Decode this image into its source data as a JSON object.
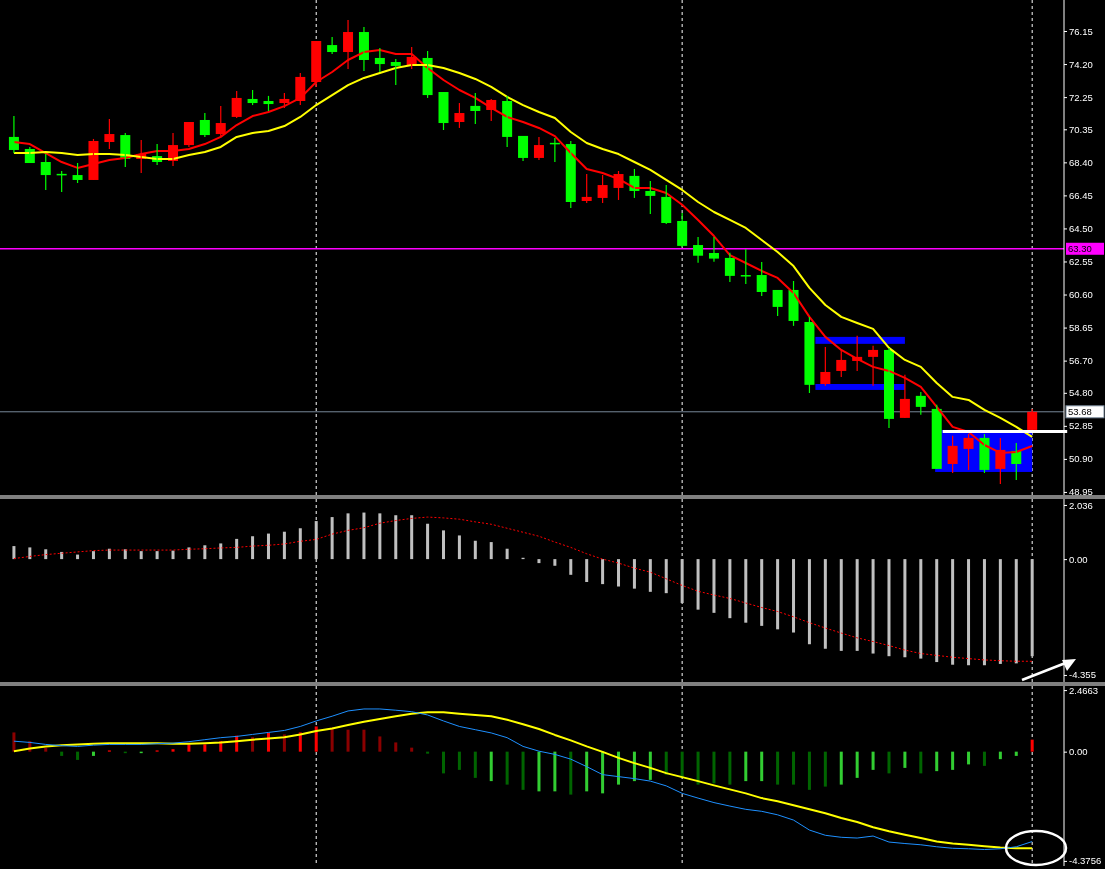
{
  "chart_data": [
    {
      "type": "candlestick",
      "categories": [
        null,
        null,
        null,
        null,
        null,
        null,
        null,
        null,
        null,
        null,
        null,
        null,
        null,
        null,
        null,
        null,
        null,
        null,
        null,
        null,
        null,
        null,
        null,
        null,
        null,
        null,
        null,
        null,
        null,
        null,
        null,
        null,
        null,
        null,
        null,
        null,
        null,
        null,
        null,
        null,
        null,
        null,
        null,
        null,
        null,
        null,
        null,
        null,
        null,
        null,
        null,
        null,
        null,
        null,
        null,
        null,
        null,
        null,
        null,
        null,
        null,
        null,
        null,
        null,
        null
      ],
      "ohlc": [
        [
          69.9,
          71.14,
          68.95,
          69.13
        ],
        [
          69.19,
          69.31,
          68.36,
          68.36
        ],
        [
          68.42,
          68.89,
          66.77,
          67.65
        ],
        [
          67.72,
          67.89,
          66.65,
          67.7
        ],
        [
          67.65,
          68.36,
          67.18,
          67.36
        ],
        [
          67.36,
          69.78,
          67.36,
          69.66
        ],
        [
          69.6,
          70.96,
          69.19,
          70.07
        ],
        [
          70.01,
          70.13,
          68.13,
          68.6
        ],
        [
          68.6,
          69.72,
          67.77,
          68.89
        ],
        [
          68.77,
          69.48,
          68.24,
          68.42
        ],
        [
          68.48,
          70.13,
          68.19,
          69.42
        ],
        [
          69.42,
          70.78,
          69.3,
          70.78
        ],
        [
          70.9,
          71.31,
          69.9,
          70.01
        ],
        [
          70.07,
          71.73,
          69.9,
          70.72
        ],
        [
          71.08,
          72.61,
          71.02,
          72.2
        ],
        [
          72.14,
          72.67,
          71.78,
          71.9
        ],
        [
          72.02,
          72.32,
          71.43,
          71.84
        ],
        [
          71.9,
          72.49,
          71.61,
          72.14
        ],
        [
          72.02,
          73.67,
          71.78,
          73.44
        ],
        [
          73.14,
          75.56,
          72.85,
          75.56
        ],
        [
          75.32,
          75.8,
          74.79,
          74.91
        ],
        [
          74.91,
          76.8,
          73.91,
          76.09
        ],
        [
          76.09,
          76.39,
          73.79,
          74.44
        ],
        [
          74.56,
          75.15,
          73.73,
          74.2
        ],
        [
          74.32,
          74.5,
          72.96,
          74.09
        ],
        [
          74.14,
          75.21,
          73.91,
          74.62
        ],
        [
          74.56,
          74.97,
          72.2,
          72.37
        ],
        [
          72.55,
          72.55,
          70.31,
          70.72
        ],
        [
          70.78,
          71.9,
          70.43,
          71.31
        ],
        [
          71.73,
          72.49,
          70.66,
          71.43
        ],
        [
          71.49,
          72.14,
          70.84,
          72.08
        ],
        [
          72.02,
          72.32,
          69.31,
          69.9
        ],
        [
          69.96,
          69.96,
          68.48,
          68.66
        ],
        [
          68.66,
          69.9,
          68.54,
          69.42
        ],
        [
          69.55,
          69.84,
          68.42,
          69.54
        ],
        [
          69.48,
          69.66,
          65.71,
          66.06
        ],
        [
          66.12,
          67.71,
          66.0,
          66.36
        ],
        [
          66.3,
          67.65,
          66.0,
          67.06
        ],
        [
          66.89,
          67.89,
          66.18,
          67.71
        ],
        [
          67.6,
          68.01,
          66.3,
          66.71
        ],
        [
          66.71,
          67.3,
          65.35,
          66.42
        ],
        [
          66.36,
          67.06,
          64.76,
          64.82
        ],
        [
          64.94,
          65.41,
          63.41,
          63.47
        ],
        [
          63.52,
          64.0,
          62.48,
          62.89
        ],
        [
          63.05,
          64.0,
          62.54,
          62.72
        ],
        [
          62.76,
          63.07,
          61.34,
          61.7
        ],
        [
          61.75,
          63.29,
          61.22,
          61.73
        ],
        [
          61.75,
          62.52,
          60.52,
          60.75
        ],
        [
          60.87,
          60.87,
          59.34,
          59.87
        ],
        [
          60.87,
          61.4,
          58.75,
          59.04
        ],
        [
          58.98,
          59.28,
          54.79,
          55.27
        ],
        [
          55.32,
          57.51,
          55.21,
          56.03
        ],
        [
          56.09,
          57.39,
          55.74,
          56.74
        ],
        [
          56.68,
          58.16,
          56.09,
          56.92
        ],
        [
          56.92,
          57.57,
          55.21,
          57.33
        ],
        [
          57.33,
          57.45,
          52.73,
          53.26
        ],
        [
          53.32,
          55.86,
          53.32,
          54.44
        ],
        [
          54.62,
          54.85,
          53.5,
          53.97
        ],
        [
          53.85,
          54.09,
          50.31,
          50.31
        ],
        [
          50.6,
          52.26,
          50.07,
          51.67
        ],
        [
          51.49,
          52.37,
          50.25,
          52.14
        ],
        [
          52.14,
          52.37,
          50.07,
          50.25
        ],
        [
          50.31,
          52.14,
          49.42,
          51.43
        ],
        [
          51.37,
          51.84,
          49.66,
          50.6
        ],
        [
          52.61,
          53.85,
          52.61,
          53.68
        ]
      ],
      "colors": [
        "#00ff00",
        "#00ff00",
        "#00ff00",
        "#00ff00",
        "#00ff00",
        "#ff0000",
        "#ff0000",
        "#00ff00",
        "#ff0000",
        "#00ff00",
        "#ff0000",
        "#ff0000",
        "#00ff00",
        "#ff0000",
        "#ff0000",
        "#00ff00",
        "#00ff00",
        "#ff0000",
        "#ff0000",
        "#ff0000",
        "#00ff00",
        "#ff0000",
        "#00ff00",
        "#00ff00",
        "#00ff00",
        "#ff0000",
        "#00ff00",
        "#00ff00",
        "#ff0000",
        "#00ff00",
        "#ff0000",
        "#00ff00",
        "#00ff00",
        "#ff0000",
        "#00ff00",
        "#00ff00",
        "#ff0000",
        "#ff0000",
        "#ff0000",
        "#00ff00",
        "#00ff00",
        "#00ff00",
        "#00ff00",
        "#00ff00",
        "#00ff00",
        "#00ff00",
        "#00ff00",
        "#00ff00",
        "#00ff00",
        "#00ff00",
        "#00ff00",
        "#ff0000",
        "#ff0000",
        "#ff0000",
        "#ff0000",
        "#00ff00",
        "#ff0000",
        "#00ff00",
        "#00ff00",
        "#ff0000",
        "#ff0000",
        "#00ff00",
        "#ff0000",
        "#00ff00",
        "#ff0000"
      ],
      "series": [
        {
          "type": "line",
          "color": "#ff0000",
          "values": [
            69.6,
            69.48,
            68.95,
            68.42,
            68.07,
            68.3,
            68.54,
            68.66,
            68.89,
            69.07,
            69.07,
            69.19,
            69.48,
            69.9,
            70.6,
            71.13,
            71.37,
            71.72,
            72.2,
            73.14,
            73.73,
            74.44,
            74.91,
            75.03,
            74.79,
            74.79,
            73.97,
            73.26,
            72.67,
            72.2,
            71.61,
            71.08,
            70.78,
            70.43,
            69.95,
            68.95,
            68.01,
            67.77,
            67.42,
            66.89,
            66.89,
            66.59,
            65.9,
            65.0,
            64.05,
            62.93,
            62.46,
            61.99,
            61.58,
            60.69,
            59.28,
            58.1,
            57.33,
            56.8,
            56.33,
            56.09,
            55.68,
            55.15,
            53.97,
            52.79,
            52.49,
            51.72,
            51.25,
            51.31,
            51.66
          ]
        },
        {
          "type": "line",
          "color": "#ffff00",
          "values": [
            68.95,
            68.95,
            69.01,
            68.95,
            68.83,
            68.89,
            68.89,
            68.83,
            68.72,
            68.6,
            68.6,
            68.83,
            69.01,
            69.31,
            69.9,
            70.13,
            70.25,
            70.54,
            71.08,
            71.78,
            72.37,
            72.96,
            73.38,
            73.67,
            73.97,
            74.14,
            74.14,
            73.97,
            73.67,
            73.32,
            72.85,
            72.26,
            71.78,
            71.37,
            71.02,
            70.19,
            69.54,
            69.19,
            68.89,
            68.42,
            67.95,
            67.36,
            66.77,
            66.06,
            65.47,
            65.0,
            64.53,
            63.82,
            63.11,
            62.28,
            60.99,
            59.98,
            59.28,
            58.92,
            58.57,
            57.45,
            56.74,
            56.33,
            55.38,
            54.56,
            54.38,
            53.79,
            53.32,
            52.79,
            52.2
          ]
        }
      ],
      "ylim": [
        48.77,
        77.98
      ],
      "yticks": [
        {
          "value": 48.95,
          "label": "48.95"
        },
        {
          "value": 50.9,
          "label": "50.90"
        },
        {
          "value": 52.85,
          "label": "52.85"
        },
        {
          "value": 54.8,
          "label": "54.80"
        },
        {
          "value": 56.7,
          "label": "56.70"
        },
        {
          "value": 58.65,
          "label": "58.65"
        },
        {
          "value": 60.6,
          "label": "60.60"
        },
        {
          "value": 62.55,
          "label": "62.55"
        },
        {
          "value": 64.5,
          "label": "64.50"
        },
        {
          "value": 66.45,
          "label": "66.45"
        },
        {
          "value": 68.4,
          "label": "68.40"
        },
        {
          "value": 70.35,
          "label": "70.35"
        },
        {
          "value": 72.25,
          "label": "72.25"
        },
        {
          "value": 74.2,
          "label": "74.20"
        },
        {
          "value": 76.15,
          "label": "76.15"
        }
      ],
      "ref_lines": [
        {
          "axis": "y",
          "value": 63.3,
          "label": "63.30",
          "color": "#ff00ff"
        },
        {
          "axis": "y",
          "value": 53.68,
          "label": "53.68",
          "color": "#778899"
        }
      ],
      "grid": "x",
      "tick_labels": "y"
    },
    {
      "type": "bar",
      "categories": [
        null,
        null,
        null,
        null,
        null,
        null,
        null,
        null,
        null,
        null,
        null,
        null,
        null,
        null,
        null,
        null,
        null,
        null,
        null,
        null,
        null,
        null,
        null,
        null,
        null,
        null,
        null,
        null,
        null,
        null,
        null,
        null,
        null,
        null,
        null,
        null,
        null,
        null,
        null,
        null,
        null,
        null,
        null,
        null,
        null,
        null,
        null,
        null,
        null,
        null,
        null,
        null,
        null,
        null,
        null,
        null,
        null,
        null,
        null,
        null,
        null,
        null,
        null,
        null,
        null
      ],
      "series": [
        {
          "type": "bar",
          "color": "#c0c0c0",
          "values": [
            0.49,
            0.44,
            0.37,
            0.27,
            0.17,
            0.3,
            0.39,
            0.37,
            0.3,
            0.3,
            0.32,
            0.44,
            0.52,
            0.59,
            0.76,
            0.86,
            0.96,
            1.03,
            1.16,
            1.43,
            1.58,
            1.72,
            1.75,
            1.72,
            1.65,
            1.65,
            1.33,
            1.08,
            0.89,
            0.69,
            0.64,
            0.39,
            0.05,
            -0.15,
            -0.25,
            -0.59,
            -0.86,
            -0.94,
            -1.03,
            -1.11,
            -1.23,
            -1.28,
            -1.65,
            -1.9,
            -2.02,
            -2.22,
            -2.39,
            -2.51,
            -2.64,
            -2.76,
            -3.2,
            -3.37,
            -3.45,
            -3.45,
            -3.55,
            -3.65,
            -3.69,
            -3.74,
            -3.87,
            -3.97,
            -3.99,
            -3.99,
            -3.94,
            -3.92,
            -3.65
          ]
        },
        {
          "type": "line",
          "color": "#ff0000",
          "line_style": "dotted",
          "values": [
            0.02,
            0.1,
            0.17,
            0.22,
            0.27,
            0.32,
            0.34,
            0.34,
            0.34,
            0.34,
            0.34,
            0.37,
            0.39,
            0.42,
            0.44,
            0.49,
            0.52,
            0.57,
            0.67,
            0.74,
            0.94,
            1.08,
            1.18,
            1.35,
            1.45,
            1.53,
            1.58,
            1.55,
            1.5,
            1.4,
            1.31,
            1.16,
            1.01,
            0.86,
            0.64,
            0.44,
            0.2,
            0.0,
            -0.15,
            -0.34,
            -0.49,
            -0.74,
            -0.99,
            -1.21,
            -1.35,
            -1.48,
            -1.65,
            -1.82,
            -1.97,
            -2.17,
            -2.39,
            -2.59,
            -2.78,
            -2.96,
            -3.1,
            -3.25,
            -3.42,
            -3.55,
            -3.62,
            -3.69,
            -3.74,
            -3.79,
            -3.82,
            -3.84,
            -3.84
          ]
        }
      ],
      "ylim": [
        -4.62,
        2.26
      ],
      "yticks": [
        {
          "value": 2.036,
          "label": "2.036"
        },
        {
          "value": 0,
          "label": "0.00"
        },
        {
          "value": -4.355,
          "label": "-4.355"
        }
      ],
      "grid": "x",
      "tick_labels": "y"
    },
    {
      "type": "bar",
      "categories": [
        null,
        null,
        null,
        null,
        null,
        null,
        null,
        null,
        null,
        null,
        null,
        null,
        null,
        null,
        null,
        null,
        null,
        null,
        null,
        null,
        null,
        null,
        null,
        null,
        null,
        null,
        null,
        null,
        null,
        null,
        null,
        null,
        null,
        null,
        null,
        null,
        null,
        null,
        null,
        null,
        null,
        null,
        null,
        null,
        null,
        null,
        null,
        null,
        null,
        null,
        null,
        null,
        null,
        null,
        null,
        null,
        null,
        null,
        null,
        null,
        null,
        null,
        null,
        null,
        null
      ],
      "series": [
        {
          "type": "bar",
          "colors": [
            "#8b0000",
            "#8b0000",
            "#8b0000",
            "#006400",
            "#006400",
            "#32cd32",
            "#ff0000",
            "#006400",
            "#32cd32",
            "#ff0000",
            "#ff0000",
            "#ff0000",
            "#ff0000",
            "#ff0000",
            "#ff0000",
            "#8b0000",
            "#ff0000",
            "#8b0000",
            "#ff0000",
            "#ff0000",
            "#8b0000",
            "#8b0000",
            "#8b0000",
            "#8b0000",
            "#8b0000",
            "#8b0000",
            "#006400",
            "#006400",
            "#006400",
            "#006400",
            "#32cd32",
            "#006400",
            "#006400",
            "#32cd32",
            "#32cd32",
            "#006400",
            "#32cd32",
            "#32cd32",
            "#32cd32",
            "#32cd32",
            "#32cd32",
            "#006400",
            "#006400",
            "#006400",
            "#006400",
            "#006400",
            "#32cd32",
            "#32cd32",
            "#006400",
            "#006400",
            "#006400",
            "#006400",
            "#32cd32",
            "#32cd32",
            "#32cd32",
            "#006400",
            "#32cd32",
            "#006400",
            "#32cd32",
            "#32cd32",
            "#32cd32",
            "#006400",
            "#32cd32",
            "#32cd32",
            "#ff0000"
          ],
          "values": [
            0.77,
            0.42,
            0.15,
            -0.17,
            -0.33,
            -0.17,
            0.05,
            -0.06,
            -0.06,
            0.05,
            0.1,
            0.29,
            0.29,
            0.42,
            0.64,
            0.58,
            0.75,
            0.69,
            0.77,
            1.01,
            0.96,
            0.88,
            0.88,
            0.61,
            0.37,
            0.16,
            -0.08,
            -0.87,
            -0.73,
            -1.05,
            -1.18,
            -1.32,
            -1.53,
            -1.59,
            -1.59,
            -1.72,
            -1.59,
            -1.67,
            -1.32,
            -1.18,
            -1.13,
            -0.92,
            -1.05,
            -1.32,
            -1.27,
            -1.32,
            -1.18,
            -1.18,
            -1.32,
            -1.32,
            -1.53,
            -1.4,
            -1.32,
            -1.05,
            -0.73,
            -0.87,
            -0.65,
            -0.87,
            -0.78,
            -0.73,
            -0.51,
            -0.57,
            -0.3,
            -0.17,
            0.48
          ]
        },
        {
          "type": "line",
          "color": "#1e90ff",
          "values": [
            0.42,
            0.37,
            0.29,
            0.24,
            0.21,
            0.26,
            0.29,
            0.29,
            0.29,
            0.32,
            0.34,
            0.4,
            0.48,
            0.56,
            0.61,
            0.69,
            0.77,
            0.85,
            1.01,
            1.23,
            1.42,
            1.63,
            1.71,
            1.71,
            1.66,
            1.6,
            1.47,
            1.23,
            1.01,
            0.88,
            0.75,
            0.56,
            0.21,
            0.02,
            -0.11,
            -0.3,
            -0.6,
            -0.92,
            -1.0,
            -1.08,
            -1.18,
            -1.37,
            -1.67,
            -1.86,
            -2.04,
            -2.18,
            -2.31,
            -2.39,
            -2.53,
            -2.74,
            -3.14,
            -3.35,
            -3.43,
            -3.46,
            -3.38,
            -3.62,
            -3.68,
            -3.73,
            -3.81,
            -3.87,
            -3.89,
            -3.92,
            -3.89,
            -3.81,
            -3.6
          ]
        },
        {
          "type": "line",
          "color": "#ffff00",
          "values": [
            0.02,
            0.13,
            0.21,
            0.26,
            0.29,
            0.32,
            0.34,
            0.34,
            0.34,
            0.34,
            0.32,
            0.32,
            0.34,
            0.37,
            0.42,
            0.48,
            0.53,
            0.58,
            0.69,
            0.83,
            0.93,
            1.07,
            1.2,
            1.31,
            1.42,
            1.52,
            1.58,
            1.58,
            1.52,
            1.47,
            1.42,
            1.28,
            1.1,
            0.91,
            0.67,
            0.45,
            0.21,
            -0.01,
            -0.25,
            -0.46,
            -0.65,
            -0.86,
            -1.02,
            -1.18,
            -1.35,
            -1.51,
            -1.67,
            -1.86,
            -1.99,
            -2.15,
            -2.31,
            -2.47,
            -2.66,
            -2.82,
            -3.03,
            -3.19,
            -3.33,
            -3.46,
            -3.6,
            -3.68,
            -3.73,
            -3.79,
            -3.84,
            -3.87,
            -3.87
          ]
        }
      ],
      "ylim": [
        -4.58,
        2.63
      ],
      "yticks": [
        {
          "value": 2.4663,
          "label": "2.4663"
        },
        {
          "value": 0,
          "label": "0.00"
        },
        {
          "value": -4.3756,
          "label": "-4.3756"
        }
      ],
      "grid": "x",
      "tick_labels": "y"
    }
  ]
}
